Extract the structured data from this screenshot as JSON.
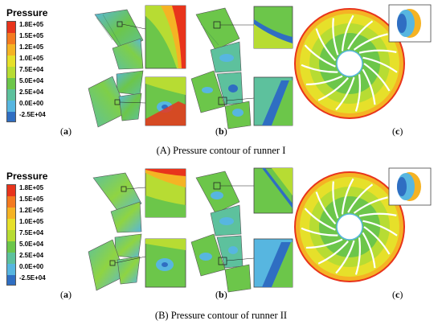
{
  "legend": {
    "title": "Pressure",
    "ticks": [
      "1.8E+05",
      "1.5E+05",
      "1.2E+05",
      "1.0E+05",
      "7.5E+04",
      "5.0E+04",
      "2.5E+04",
      "0.0E+00",
      "-2.5E+04"
    ],
    "colors": [
      "#e8341c",
      "#f47a20",
      "#f5b324",
      "#e6e02a",
      "#b7dc33",
      "#6cc64a",
      "#5dc19d",
      "#57b6e0",
      "#2f6ec2"
    ]
  },
  "panels": [
    {
      "subfigures": [
        {
          "letter": "a",
          "open": "(",
          "close": ")"
        },
        {
          "letter": "b",
          "open": "(",
          "close": ")"
        },
        {
          "letter": "c",
          "open": "(",
          "close": ")"
        }
      ],
      "caption": "(A) Pressure contour of runner I"
    },
    {
      "subfigures": [
        {
          "letter": "a",
          "open": "(",
          "close": ")"
        },
        {
          "letter": "b",
          "open": "(",
          "close": ")"
        },
        {
          "letter": "c",
          "open": "(",
          "close": ")"
        }
      ],
      "caption": "(B) Pressure contour of runner II"
    }
  ]
}
